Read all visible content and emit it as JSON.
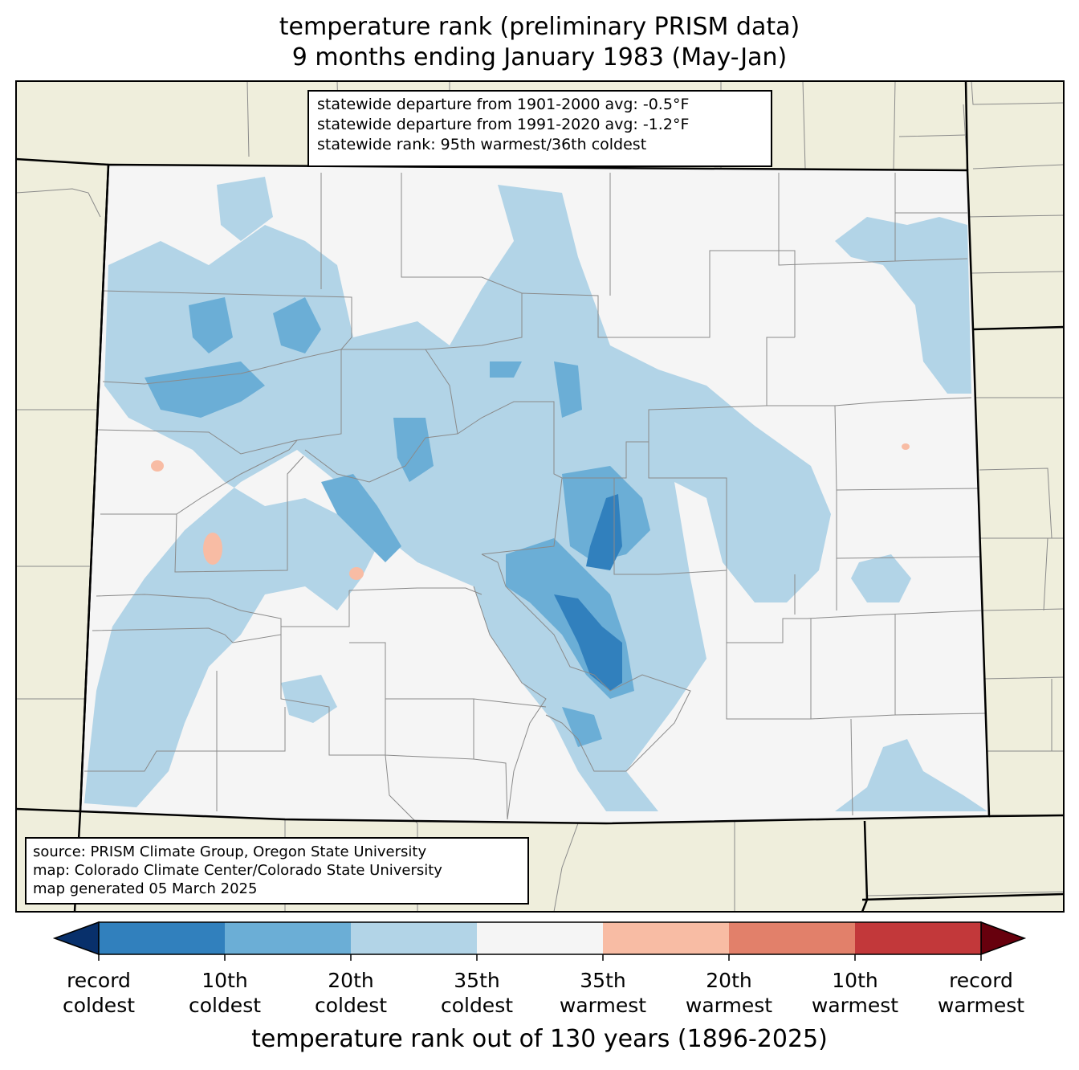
{
  "title": {
    "line1": "temperature rank (preliminary PRISM data)",
    "line2": "9 months ending January 1983 (May-Jan)"
  },
  "stats": {
    "line1": "statewide departure from 1901-2000 avg: -0.5°F",
    "line2": "statewide departure from 1991-2020 avg: -1.2°F",
    "line3": "statewide rank: 95th warmest/36th coldest"
  },
  "source": {
    "line1": "source: PRISM Climate Group, Oregon State University",
    "line2": "map: Colorado Climate Center/Colorado State University",
    "line3": "map generated 05 March 2025"
  },
  "colorbar": {
    "label": "temperature rank out of 130 years (1896-2025)",
    "extend_low_color": "#08306b",
    "extend_high_color": "#67000d",
    "bins": [
      {
        "color": "#3180bd"
      },
      {
        "color": "#6baed6"
      },
      {
        "color": "#b2d4e7"
      },
      {
        "color": "#f5f5f5"
      },
      {
        "color": "#f8bca4"
      },
      {
        "color": "#e2806a"
      },
      {
        "color": "#c2383a"
      }
    ],
    "ticks": [
      {
        "line1": "record",
        "line2": "coldest"
      },
      {
        "line1": "10th",
        "line2": "coldest"
      },
      {
        "line1": "20th",
        "line2": "coldest"
      },
      {
        "line1": "35th",
        "line2": "coldest"
      },
      {
        "line1": "35th",
        "line2": "warmest"
      },
      {
        "line1": "20th",
        "line2": "warmest"
      },
      {
        "line1": "10th",
        "line2": "warmest"
      },
      {
        "line1": "record",
        "line2": "warmest"
      }
    ]
  },
  "map": {
    "land_color": "#efeedc",
    "state_fill": "#f5f5f5"
  }
}
